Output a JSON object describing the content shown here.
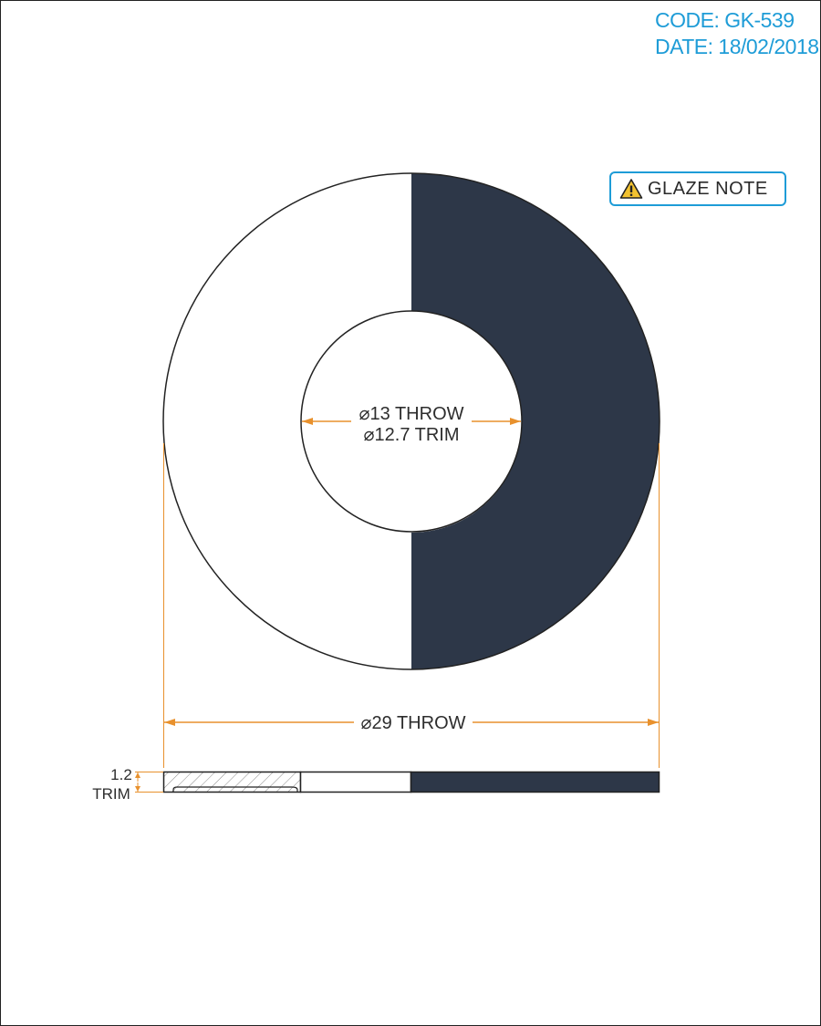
{
  "header": {
    "code": "CODE: GK-539",
    "date": "DATE: 18/02/2018"
  },
  "note": {
    "label": "GLAZE NOTE",
    "icon": "warning-triangle-icon"
  },
  "dimensions": {
    "inner_throw": "⌀13 THROW",
    "inner_trim": "⌀12.7 TRIM",
    "outer_throw": "⌀29 THROW",
    "thickness_value": "1.2",
    "thickness_label": "TRIM"
  },
  "colors": {
    "accent": "#1e9cd7",
    "dimension_line": "#e8912d",
    "glaze_fill": "#2d3748",
    "outline": "#222222",
    "warning_icon": "#f2c230"
  }
}
